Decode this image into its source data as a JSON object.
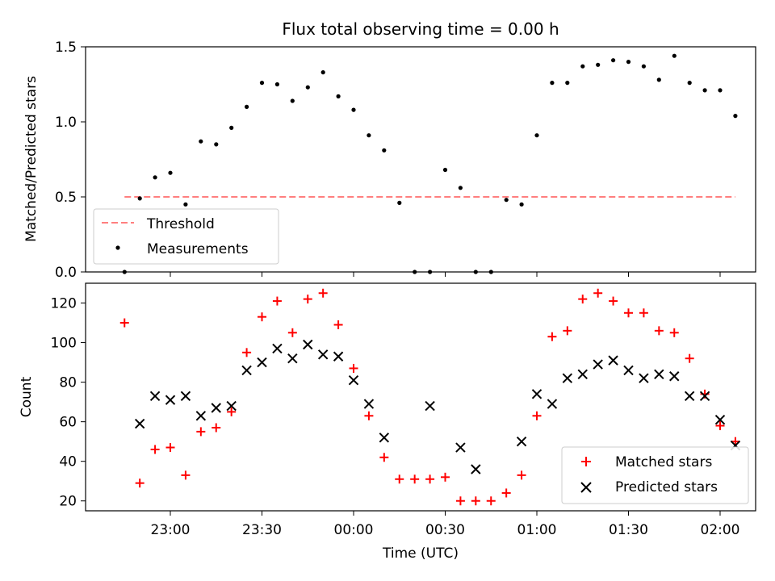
{
  "figure": {
    "title": "Flux total observing time = 0.00 h",
    "xlabel": "Time (UTC)"
  },
  "chart_data": [
    {
      "type": "scatter",
      "panel": "top",
      "ylabel": "Matched/Predicted stars",
      "ylim": [
        0,
        1.5
      ],
      "yticks": [
        "0.0",
        "0.5",
        "1.0",
        "1.5"
      ],
      "threshold": {
        "name": "Threshold",
        "value": 0.5,
        "color": "#ff7f7f",
        "style": "dashed"
      },
      "series": [
        {
          "name": "Measurements",
          "color": "#000000",
          "marker": "dot",
          "points": [
            {
              "x": "22:45",
              "y": 0.0
            },
            {
              "x": "22:50",
              "y": 0.49
            },
            {
              "x": "22:55",
              "y": 0.63
            },
            {
              "x": "23:00",
              "y": 0.66
            },
            {
              "x": "23:05",
              "y": 0.45
            },
            {
              "x": "23:10",
              "y": 0.87
            },
            {
              "x": "23:15",
              "y": 0.85
            },
            {
              "x": "23:20",
              "y": 0.96
            },
            {
              "x": "23:25",
              "y": 1.1
            },
            {
              "x": "23:30",
              "y": 1.26
            },
            {
              "x": "23:35",
              "y": 1.25
            },
            {
              "x": "23:40",
              "y": 1.14
            },
            {
              "x": "23:45",
              "y": 1.23
            },
            {
              "x": "23:50",
              "y": 1.33
            },
            {
              "x": "23:55",
              "y": 1.17
            },
            {
              "x": "00:00",
              "y": 1.08
            },
            {
              "x": "00:05",
              "y": 0.91
            },
            {
              "x": "00:10",
              "y": 0.81
            },
            {
              "x": "00:15",
              "y": 0.46
            },
            {
              "x": "00:20",
              "y": 0.0
            },
            {
              "x": "00:25",
              "y": 0.0
            },
            {
              "x": "00:30",
              "y": 0.68
            },
            {
              "x": "00:35",
              "y": 0.56
            },
            {
              "x": "00:40",
              "y": 0.0
            },
            {
              "x": "00:45",
              "y": 0.0
            },
            {
              "x": "00:50",
              "y": 0.48
            },
            {
              "x": "00:55",
              "y": 0.45
            },
            {
              "x": "01:00",
              "y": 0.91
            },
            {
              "x": "01:05",
              "y": 1.26
            },
            {
              "x": "01:10",
              "y": 1.26
            },
            {
              "x": "01:15",
              "y": 1.37
            },
            {
              "x": "01:20",
              "y": 1.38
            },
            {
              "x": "01:25",
              "y": 1.41
            },
            {
              "x": "01:30",
              "y": 1.4
            },
            {
              "x": "01:35",
              "y": 1.37
            },
            {
              "x": "01:40",
              "y": 1.28
            },
            {
              "x": "01:45",
              "y": 1.44
            },
            {
              "x": "01:50",
              "y": 1.26
            },
            {
              "x": "01:55",
              "y": 1.21
            },
            {
              "x": "02:00",
              "y": 1.21
            },
            {
              "x": "02:05",
              "y": 1.04
            }
          ]
        }
      ],
      "legend": {
        "placement": "lower-left",
        "entries": [
          "Threshold",
          "Measurements"
        ]
      }
    },
    {
      "type": "scatter",
      "panel": "bottom",
      "ylabel": "Count",
      "ylim": [
        15,
        130
      ],
      "yticks": [
        "20",
        "40",
        "60",
        "80",
        "100",
        "120"
      ],
      "xticks": [
        "23:00",
        "23:30",
        "00:00",
        "00:30",
        "01:00",
        "01:30",
        "02:00"
      ],
      "x": [
        "22:45",
        "22:50",
        "22:55",
        "23:00",
        "23:05",
        "23:10",
        "23:15",
        "23:20",
        "23:25",
        "23:30",
        "23:35",
        "23:40",
        "23:45",
        "23:50",
        "23:55",
        "00:00",
        "00:05",
        "00:10",
        "00:15",
        "00:20",
        "00:25",
        "00:30",
        "00:35",
        "00:40",
        "00:45",
        "00:50",
        "00:55",
        "01:00",
        "01:05",
        "01:10",
        "01:15",
        "01:20",
        "01:25",
        "01:30",
        "01:35",
        "01:40",
        "01:45",
        "01:50",
        "01:55",
        "02:00",
        "02:05"
      ],
      "series": [
        {
          "name": "Matched stars",
          "color": "#ff0000",
          "marker": "plus",
          "values": [
            110,
            29,
            46,
            47,
            33,
            55,
            57,
            65,
            95,
            113,
            121,
            105,
            122,
            125,
            109,
            87,
            63,
            42,
            31,
            31,
            31,
            32,
            20,
            20,
            20,
            24,
            33,
            63,
            103,
            106,
            122,
            125,
            121,
            115,
            115,
            106,
            105,
            92,
            74,
            58,
            50
          ]
        },
        {
          "name": "Predicted stars",
          "color": "#000000",
          "marker": "x",
          "values": [
            null,
            59,
            73,
            71,
            73,
            63,
            67,
            68,
            86,
            90,
            97,
            92,
            99,
            94,
            93,
            81,
            69,
            52,
            null,
            null,
            68,
            null,
            47,
            36,
            null,
            null,
            50,
            74,
            69,
            82,
            84,
            89,
            91,
            86,
            82,
            84,
            83,
            73,
            73,
            61,
            48
          ]
        }
      ],
      "legend": {
        "placement": "lower-right",
        "entries": [
          "Matched stars",
          "Predicted stars"
        ]
      }
    }
  ]
}
